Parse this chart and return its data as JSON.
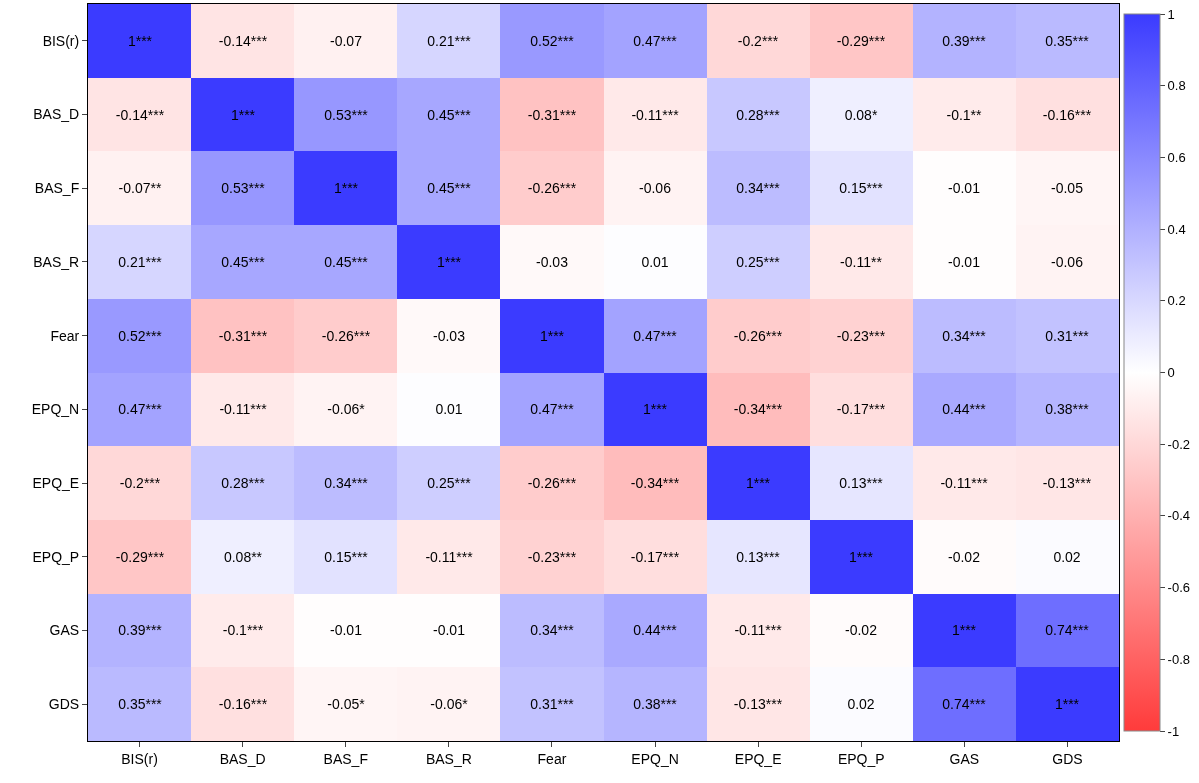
{
  "chart_data": {
    "type": "heatmap",
    "categories": [
      "BIS(r)",
      "BAS_D",
      "BAS_F",
      "BAS_R",
      "Fear",
      "EPQ_N",
      "EPQ_E",
      "EPQ_P",
      "GAS",
      "GDS"
    ],
    "y_categories": [
      "BIS(r)",
      "BAS_D",
      "BAS_F",
      "BAS_R",
      "Fear",
      "EPQ_N",
      "EPQ_E",
      "EPQ_P",
      "GAS",
      "GDS"
    ],
    "cells": [
      [
        1,
        -0.14,
        -0.07,
        0.21,
        0.52,
        0.47,
        -0.2,
        -0.29,
        0.39,
        0.35
      ],
      [
        -0.14,
        1,
        0.53,
        0.45,
        -0.31,
        -0.11,
        0.28,
        0.08,
        -0.1,
        -0.16
      ],
      [
        -0.07,
        0.53,
        1,
        0.45,
        -0.26,
        -0.06,
        0.34,
        0.15,
        -0.01,
        -0.05
      ],
      [
        0.21,
        0.45,
        0.45,
        1,
        -0.03,
        0.01,
        0.25,
        -0.11,
        -0.01,
        -0.06
      ],
      [
        0.52,
        -0.31,
        -0.26,
        -0.03,
        1,
        0.47,
        -0.26,
        -0.23,
        0.34,
        0.31
      ],
      [
        0.47,
        -0.11,
        -0.06,
        0.01,
        0.47,
        1,
        -0.34,
        -0.17,
        0.44,
        0.38
      ],
      [
        -0.2,
        0.28,
        0.34,
        0.25,
        -0.26,
        -0.34,
        1,
        0.13,
        -0.11,
        -0.13
      ],
      [
        -0.29,
        0.08,
        0.15,
        -0.11,
        -0.23,
        -0.17,
        0.13,
        1,
        -0.02,
        0.02
      ],
      [
        0.39,
        -0.1,
        -0.01,
        -0.01,
        0.34,
        0.44,
        -0.11,
        -0.02,
        1,
        0.74
      ],
      [
        0.35,
        -0.16,
        -0.05,
        -0.06,
        0.31,
        0.38,
        -0.13,
        0.02,
        0.74,
        1
      ]
    ],
    "cell_labels": [
      [
        "1***",
        "-0.14***",
        "-0.07",
        "0.21***",
        "0.52***",
        "0.47***",
        "-0.2***",
        "-0.29***",
        "0.39***",
        "0.35***"
      ],
      [
        "-0.14***",
        "1***",
        "0.53***",
        "0.45***",
        "-0.31***",
        "-0.11***",
        "0.28***",
        "0.08*",
        "-0.1**",
        "-0.16***"
      ],
      [
        "-0.07**",
        "0.53***",
        "1***",
        "0.45***",
        "-0.26***",
        "-0.06",
        "0.34***",
        "0.15***",
        "-0.01",
        "-0.05"
      ],
      [
        "0.21***",
        "0.45***",
        "0.45***",
        "1***",
        "-0.03",
        "0.01",
        "0.25***",
        "-0.11**",
        "-0.01",
        "-0.06"
      ],
      [
        "0.52***",
        "-0.31***",
        "-0.26***",
        "-0.03",
        "1***",
        "0.47***",
        "-0.26***",
        "-0.23***",
        "0.34***",
        "0.31***"
      ],
      [
        "0.47***",
        "-0.11***",
        "-0.06*",
        "0.01",
        "0.47***",
        "1***",
        "-0.34***",
        "-0.17***",
        "0.44***",
        "0.38***"
      ],
      [
        "-0.2***",
        "0.28***",
        "0.34***",
        "0.25***",
        "-0.26***",
        "-0.34***",
        "1***",
        "0.13***",
        "-0.11***",
        "-0.13***"
      ],
      [
        "-0.29***",
        "0.08**",
        "0.15***",
        "-0.11***",
        "-0.23***",
        "-0.17***",
        "0.13***",
        "1***",
        "-0.02",
        "0.02"
      ],
      [
        "0.39***",
        "-0.1***",
        "-0.01",
        "-0.01",
        "0.34***",
        "0.44***",
        "-0.11***",
        "-0.02",
        "1***",
        "0.74***"
      ],
      [
        "0.35***",
        "-0.16***",
        "-0.05*",
        "-0.06*",
        "0.31***",
        "0.38***",
        "-0.13***",
        "0.02",
        "0.74***",
        "1***"
      ]
    ],
    "clim": [
      -1,
      1
    ],
    "cticks": [
      -1,
      -0.8,
      -0.6,
      -0.4,
      -0.2,
      0,
      0.2,
      0.4,
      0.6,
      0.8,
      1
    ]
  }
}
